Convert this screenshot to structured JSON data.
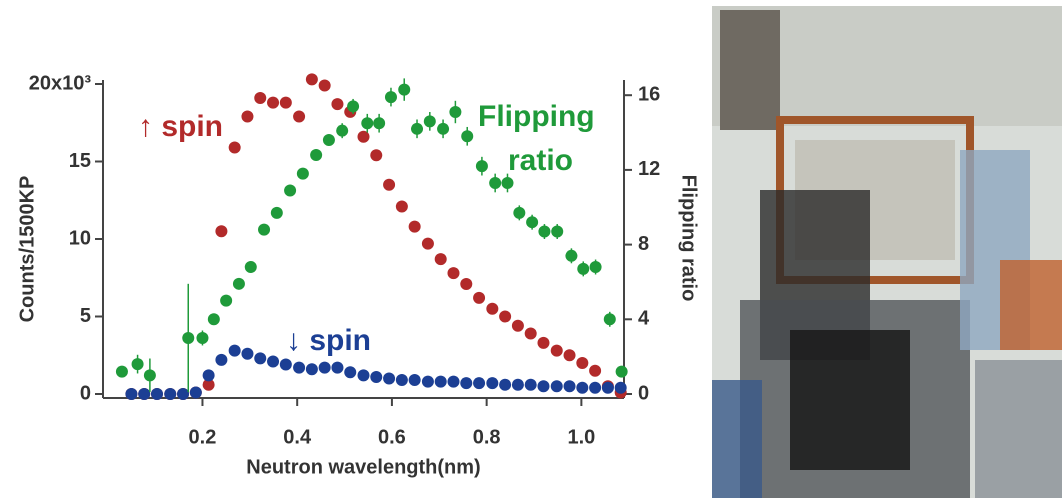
{
  "chart_data": {
    "type": "scatter",
    "xlabel": "Neutron wavelength(nm)",
    "ylabel": "Counts/1500KP",
    "y2label": "Flipping ratio",
    "xlim": [
      -0.01,
      1.09
    ],
    "xticks": [
      0.2,
      0.4,
      0.6,
      0.8,
      {
        "value": 1.0,
        "label": "1.0"
      }
    ],
    "ylim": [
      0,
      20
    ],
    "yticks": [
      0,
      5,
      10,
      15,
      {
        "value": 20,
        "label": "20x10³"
      }
    ],
    "y2lim": [
      0,
      16.6
    ],
    "y2ticks": [
      0,
      4,
      8,
      12,
      16
    ],
    "annotations": [
      {
        "text": "↑ spin",
        "color": "#b22a2a"
      },
      {
        "text": "Flipping",
        "color": "#1f9a3a"
      },
      {
        "text": "ratio",
        "color": "#1f9a3a"
      },
      {
        "text": "↓ spin",
        "color": "#1c3f94"
      }
    ],
    "series": [
      {
        "color": "#b22a2a",
        "x": [
          0.05,
          0.077,
          0.104,
          0.132,
          0.159,
          0.186,
          0.213,
          0.24,
          0.268,
          0.295,
          0.322,
          0.349,
          0.376,
          0.404,
          0.431,
          0.458,
          0.485,
          0.512,
          0.54,
          0.567,
          0.594,
          0.621,
          0.648,
          0.676,
          0.703,
          0.73,
          0.757,
          0.784,
          0.812,
          0.839,
          0.866,
          0.893,
          0.92,
          0.948,
          0.975,
          1.002,
          1.029,
          1.056,
          1.083
        ],
        "values": [
          0,
          0,
          0,
          0,
          0,
          0.1,
          0.6,
          10.5,
          15.9,
          17.9,
          19.1,
          18.8,
          18.8,
          17.9,
          20.3,
          19.9,
          18.7,
          18.2,
          16.6,
          15.4,
          13.5,
          12.1,
          10.8,
          9.7,
          8.7,
          7.8,
          7.1,
          6.2,
          5.5,
          5.0,
          4.4,
          3.9,
          3.3,
          2.8,
          2.5,
          2.0,
          1.5,
          0.5,
          0.1
        ]
      },
      {
        "color": "#1c3f94",
        "x": [
          0.05,
          0.077,
          0.104,
          0.132,
          0.159,
          0.186,
          0.213,
          0.24,
          0.268,
          0.295,
          0.322,
          0.349,
          0.376,
          0.404,
          0.431,
          0.458,
          0.485,
          0.512,
          0.54,
          0.567,
          0.594,
          0.621,
          0.648,
          0.676,
          0.703,
          0.73,
          0.757,
          0.784,
          0.812,
          0.839,
          0.866,
          0.893,
          0.92,
          0.948,
          0.975,
          1.002,
          1.029,
          1.056,
          1.083
        ],
        "values": [
          0,
          0,
          0,
          0,
          0,
          0.1,
          1.2,
          2.2,
          2.8,
          2.6,
          2.3,
          2.1,
          1.9,
          1.7,
          1.6,
          1.7,
          1.7,
          1.4,
          1.2,
          1.1,
          1.0,
          0.9,
          0.9,
          0.8,
          0.8,
          0.8,
          0.7,
          0.7,
          0.7,
          0.6,
          0.6,
          0.6,
          0.5,
          0.5,
          0.5,
          0.4,
          0.4,
          0.4,
          0.4
        ]
      },
      {
        "color": "#1f9a3a",
        "axis": "y2",
        "x": [
          0.03,
          0.063,
          0.089,
          0.17,
          0.2,
          0.224,
          0.25,
          0.277,
          0.302,
          0.33,
          0.357,
          0.385,
          0.412,
          0.44,
          0.467,
          0.495,
          0.518,
          0.548,
          0.573,
          0.598,
          0.626,
          0.653,
          0.68,
          0.708,
          0.734,
          0.759,
          0.79,
          0.818,
          0.844,
          0.869,
          0.896,
          0.922,
          0.949,
          0.979,
          1.004,
          1.03,
          1.06,
          1.085
        ],
        "values": [
          1.2,
          1.6,
          1.0,
          3.0,
          3.0,
          4.0,
          5.0,
          5.9,
          6.8,
          8.8,
          9.7,
          10.9,
          11.8,
          12.8,
          13.6,
          14.1,
          15.4,
          14.5,
          14.5,
          15.9,
          16.3,
          14.2,
          14.6,
          14.2,
          15.1,
          13.8,
          12.2,
          11.3,
          11.3,
          9.7,
          9.2,
          8.7,
          8.7,
          7.4,
          6.7,
          6.8,
          4.0,
          1.2
        ],
        "errors": [
          0.3,
          0.5,
          0.9,
          2.9,
          0.4,
          0.3,
          0.3,
          0.3,
          0.3,
          0.3,
          0.3,
          0.3,
          0.3,
          0.3,
          0.3,
          0.4,
          0.4,
          0.5,
          0.5,
          0.5,
          0.6,
          0.5,
          0.5,
          0.5,
          0.6,
          0.5,
          0.5,
          0.5,
          0.5,
          0.4,
          0.4,
          0.4,
          0.4,
          0.4,
          0.4,
          0.4,
          0.4,
          0.3
        ]
      }
    ]
  }
}
